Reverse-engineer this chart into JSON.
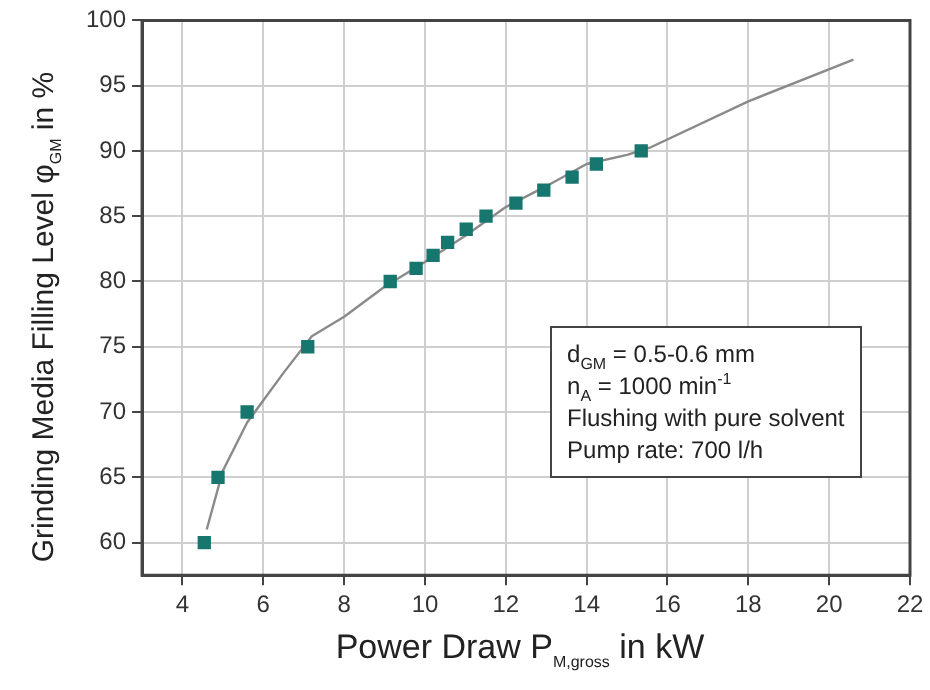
{
  "chart_data": {
    "type": "scatter",
    "xlabel": "Power Draw P$_{M,gross}$ in kW",
    "ylabel": "Grinding Media Filling Level φ$_{GM}$ in %",
    "xlim": [
      3,
      22
    ],
    "xticks": [
      4,
      6,
      8,
      10,
      12,
      14,
      16,
      18,
      20,
      22
    ],
    "ylim": [
      57.5,
      100
    ],
    "yticks": [
      60,
      65,
      70,
      75,
      80,
      85,
      90,
      95,
      100
    ],
    "grid": true,
    "legend": false,
    "marker": "square",
    "series": [
      {
        "color": "#17766e",
        "x": [
          4.54,
          4.88,
          5.6,
          7.1,
          9.14,
          9.78,
          10.2,
          10.56,
          11.02,
          11.51,
          12.25,
          12.94,
          13.64,
          14.24,
          15.35
        ],
        "values": [
          60,
          65,
          70,
          75,
          80,
          81,
          82,
          83,
          84,
          85,
          86,
          87,
          88,
          89,
          90
        ]
      },
      {
        "type": "line",
        "color": "#8a8a8a",
        "marker": "none",
        "line_style": "solid",
        "x": [
          4.6,
          5.0,
          5.6,
          6.5,
          7.2,
          8,
          9,
          10,
          11,
          12,
          13,
          14,
          15,
          15.6,
          18,
          20.6
        ],
        "values": [
          61,
          65.5,
          69.2,
          73,
          75.8,
          77.3,
          79.6,
          81.5,
          83.5,
          85.7,
          87.3,
          89,
          89.7,
          90.3,
          93.8,
          97
        ]
      }
    ],
    "annotations": [
      "d$_{GM}$ = 0.5-0.6 mm",
      "n$_{A}$ = 1000 min$^{-1}$",
      "Flushing with pure solvent",
      "Pump rate: 700 l/h"
    ]
  }
}
